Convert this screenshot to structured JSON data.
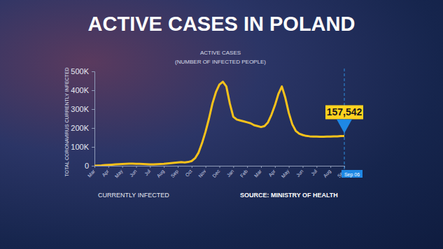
{
  "chart_data": {
    "type": "line",
    "title": "ACTIVE CASES IN POLAND",
    "subtitle": "ACTIVE CASES",
    "subtitle_note": "(NUMBER OF INFECTED PEOPLE)",
    "ylabel": "TOTAL CORONAVIRUS CURRENTLY INFECTED",
    "footer_note": "CURRENTLY INFECTED",
    "source": "SOURCE: MINISTRY OF HEALTH",
    "color": "#f7c21b",
    "grid": false,
    "ylim": [
      0,
      500000
    ],
    "yticks": [
      0,
      {
        "value": 100000,
        "label": "100K"
      },
      {
        "value": 200000,
        "label": "200K"
      },
      {
        "value": 300000,
        "label": "300K"
      },
      {
        "value": 400000,
        "label": "400K"
      },
      {
        "value": 500000,
        "label": "500K"
      }
    ],
    "categories": [
      "Mar",
      null,
      null,
      null,
      "Apr",
      null,
      null,
      null,
      "May",
      null,
      null,
      null,
      "Jun",
      null,
      null,
      null,
      "Jul",
      null,
      null,
      null,
      "Aug",
      null,
      null,
      null,
      "Sep",
      null,
      null,
      null,
      "Oct",
      null,
      null,
      null,
      "Nov",
      null,
      null,
      null,
      "Dec",
      null,
      null,
      null,
      "Jan",
      null,
      null,
      null,
      "Feb",
      null,
      null,
      null,
      "Mar",
      null,
      null,
      null,
      "Apr",
      null,
      null,
      null,
      "May",
      null,
      null,
      null,
      "Jun",
      null,
      null,
      null,
      "Jul",
      null,
      null,
      null,
      "Aug",
      null,
      null,
      null,
      "Sep"
    ],
    "values": [
      0,
      1000,
      2000,
      4000,
      5000,
      6000,
      7000,
      8000,
      9000,
      10000,
      11000,
      11000,
      10000,
      10000,
      9000,
      8000,
      7000,
      7000,
      8000,
      9000,
      10000,
      12000,
      14000,
      16000,
      18000,
      19000,
      18000,
      20000,
      25000,
      40000,
      70000,
      120000,
      180000,
      250000,
      330000,
      390000,
      430000,
      445000,
      420000,
      330000,
      260000,
      245000,
      240000,
      235000,
      230000,
      225000,
      215000,
      210000,
      205000,
      210000,
      230000,
      270000,
      320000,
      380000,
      420000,
      360000,
      280000,
      220000,
      185000,
      170000,
      163000,
      158000,
      156000,
      155000,
      155000,
      154000,
      154000,
      155000,
      155000,
      156000,
      156000,
      157000,
      157542
    ],
    "annotation": {
      "value": 157542,
      "label": "157,542",
      "date_label": "Sep 06"
    }
  }
}
